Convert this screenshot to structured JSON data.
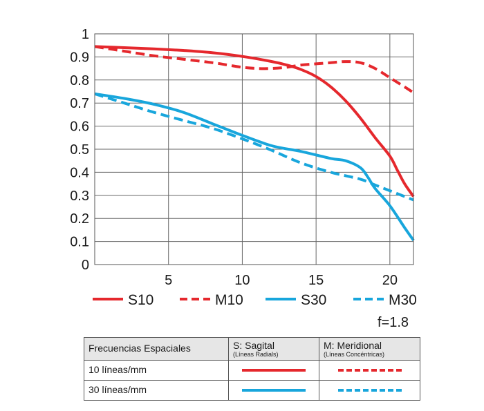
{
  "chart_data": {
    "type": "line",
    "xlim": [
      0,
      21.6
    ],
    "ylim": [
      0,
      1
    ],
    "x_ticks": [
      5,
      10,
      15,
      20
    ],
    "y_ticks": [
      "0",
      "0.1",
      "0.2",
      "0.3",
      "0.4",
      "0.5",
      "0.6",
      "0.7",
      "0.8",
      "0.9",
      "1"
    ],
    "grid": true,
    "legend_position": "below-plot",
    "series": [
      {
        "name": "S10",
        "color": "#e5282d",
        "style": "solid",
        "x": [
          0,
          2,
          4,
          6,
          8,
          10,
          12,
          13,
          14,
          15,
          16,
          17,
          18,
          19,
          20,
          20.5,
          21,
          21.6
        ],
        "y": [
          0.945,
          0.94,
          0.935,
          0.928,
          0.918,
          0.902,
          0.88,
          0.865,
          0.845,
          0.815,
          0.77,
          0.71,
          0.635,
          0.55,
          0.47,
          0.41,
          0.35,
          0.295
        ]
      },
      {
        "name": "M10",
        "color": "#e5282d",
        "style": "dashed",
        "x": [
          0,
          2,
          4,
          6,
          8,
          9,
          10,
          11,
          12,
          13,
          14,
          15,
          16,
          17,
          18,
          19,
          20,
          21,
          21.6
        ],
        "y": [
          0.945,
          0.925,
          0.905,
          0.89,
          0.875,
          0.865,
          0.855,
          0.85,
          0.85,
          0.855,
          0.865,
          0.87,
          0.875,
          0.88,
          0.875,
          0.85,
          0.81,
          0.77,
          0.745
        ]
      },
      {
        "name": "S30",
        "color": "#18a6dc",
        "style": "solid",
        "x": [
          0,
          2,
          4,
          6,
          8,
          10,
          12,
          14,
          16,
          17,
          18,
          18.5,
          19,
          20,
          21,
          21.6
        ],
        "y": [
          0.74,
          0.72,
          0.695,
          0.66,
          0.61,
          0.56,
          0.515,
          0.49,
          0.46,
          0.45,
          0.42,
          0.38,
          0.33,
          0.255,
          0.16,
          0.105
        ]
      },
      {
        "name": "M30",
        "color": "#18a6dc",
        "style": "dashed",
        "x": [
          0,
          2,
          4,
          6,
          8,
          10,
          12,
          14,
          16,
          18,
          19,
          20,
          21,
          21.6
        ],
        "y": [
          0.74,
          0.7,
          0.66,
          0.625,
          0.59,
          0.545,
          0.495,
          0.44,
          0.4,
          0.37,
          0.345,
          0.32,
          0.295,
          0.28
        ]
      }
    ]
  },
  "aperture": "f=1.8",
  "table": {
    "header_col1": "Frecuencias Espaciales",
    "header_col2": "S: Sagital",
    "header_col2_sub": "(Líneas Radials)",
    "header_col3": "M: Meridional",
    "header_col3_sub": "(Líneas Concéntricas)",
    "row1_label": "10 líneas/mm",
    "row2_label": "30 líneas/mm"
  }
}
